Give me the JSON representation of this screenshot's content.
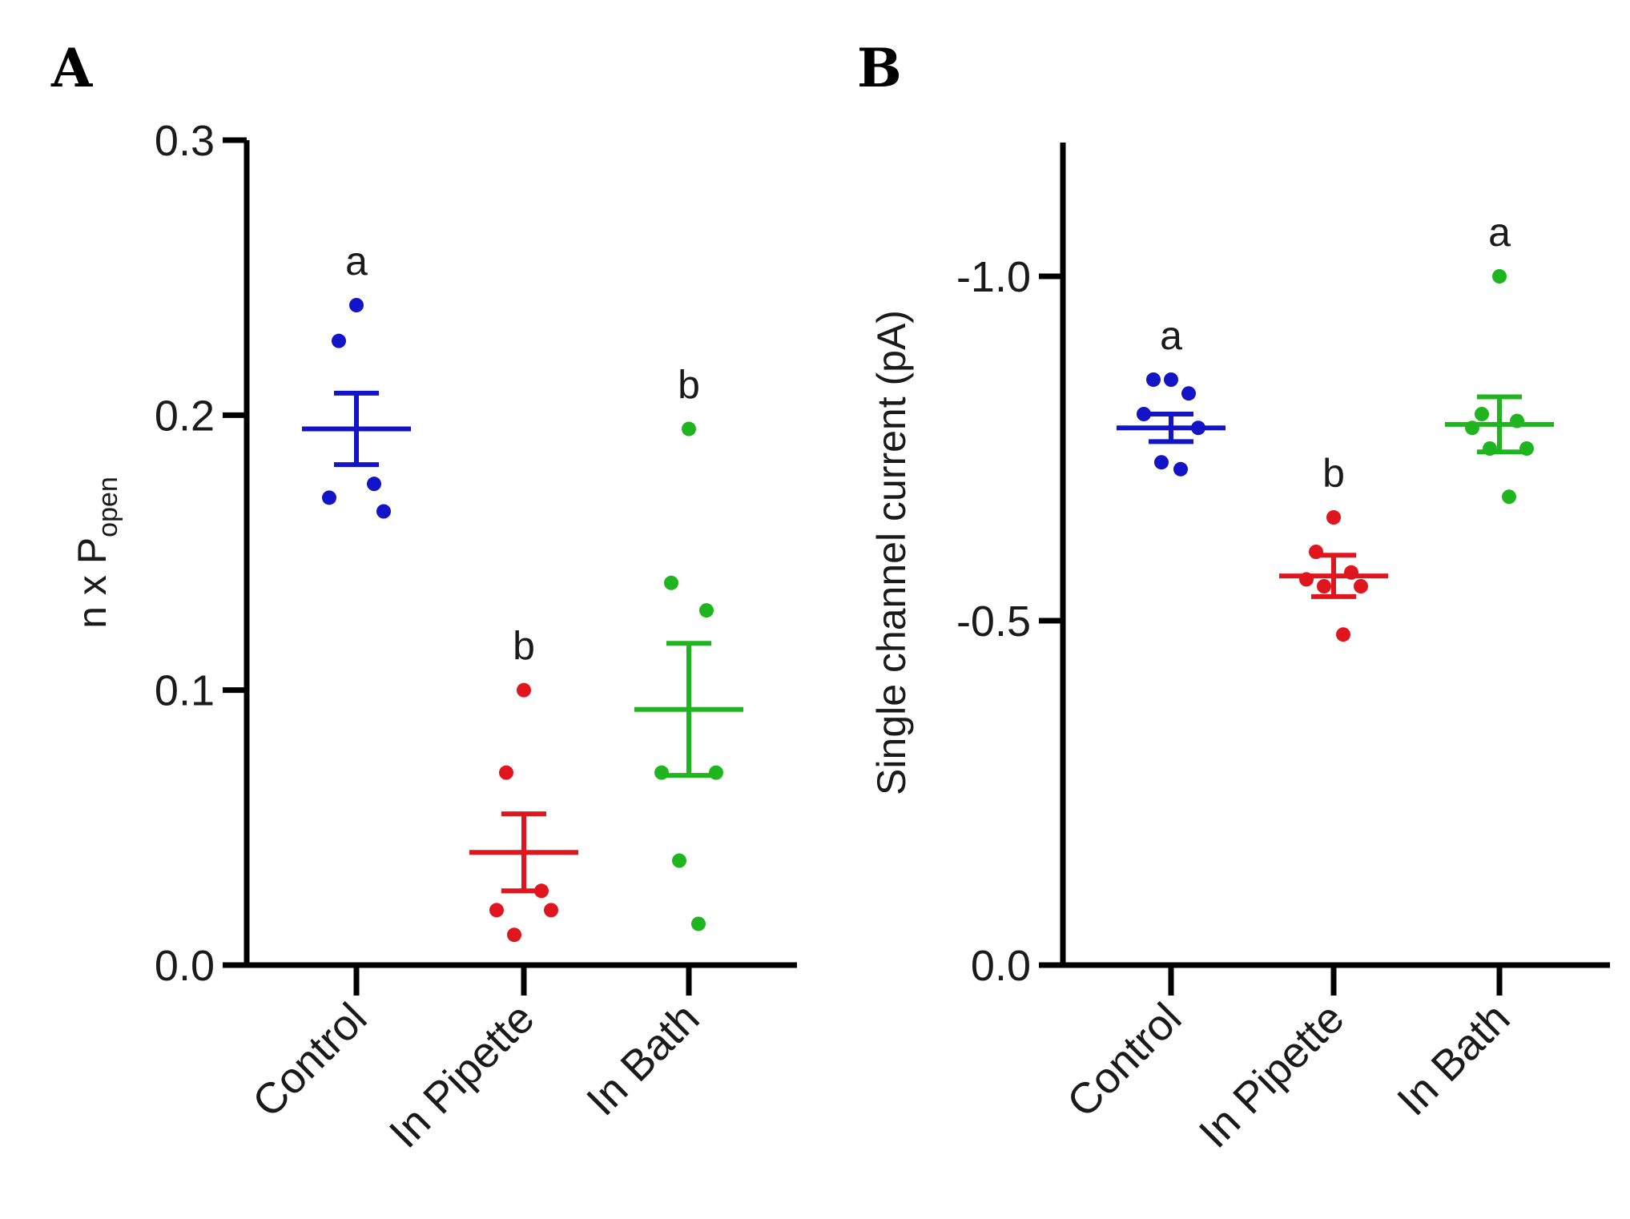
{
  "colors": {
    "control": "#1313c8",
    "pipette": "#e0161e",
    "bath": "#1fb51f",
    "axis": "#000000"
  },
  "chart_data": [
    {
      "panel": "A",
      "type": "scatter",
      "ylabel_main": "n x P",
      "ylabel_sub": "open",
      "ylim": [
        0,
        0.3
      ],
      "yticks": [
        0.0,
        0.1,
        0.2,
        0.3
      ],
      "ytick_labels": [
        "0.0",
        "0.1",
        "0.2",
        "0.3"
      ],
      "categories": [
        "Control",
        "In Pipette",
        "In Bath"
      ],
      "groups": [
        {
          "name": "Control",
          "color": "#1313c8",
          "points": [
            0.24,
            0.227,
            0.175,
            0.17,
            0.165
          ],
          "mean": 0.195,
          "sem": 0.013,
          "sig": "a"
        },
        {
          "name": "In Pipette",
          "color": "#e0161e",
          "points": [
            0.1,
            0.07,
            0.027,
            0.02,
            0.02,
            0.011
          ],
          "mean": 0.041,
          "sem": 0.014,
          "sig": "b"
        },
        {
          "name": "In Bath",
          "color": "#1fb51f",
          "points": [
            0.195,
            0.139,
            0.129,
            0.07,
            0.07,
            0.038,
            0.015
          ],
          "mean": 0.093,
          "sem": 0.024,
          "sig": "b"
        }
      ]
    },
    {
      "panel": "B",
      "type": "scatter",
      "ylabel_main": "Single channel current (pA)",
      "ylim": [
        0,
        -1.2
      ],
      "yticks": [
        0.0,
        -0.5,
        -1.0
      ],
      "ytick_labels": [
        "0.0",
        "-0.5",
        "-1.0"
      ],
      "categories": [
        "Control",
        "In Pipette",
        "In Bath"
      ],
      "groups": [
        {
          "name": "Control",
          "color": "#1313c8",
          "points": [
            -0.85,
            -0.85,
            -0.83,
            -0.8,
            -0.78,
            -0.73,
            -0.72
          ],
          "mean": -0.78,
          "sem": 0.02,
          "sig": "a"
        },
        {
          "name": "In Pipette",
          "color": "#e0161e",
          "points": [
            -0.65,
            -0.6,
            -0.57,
            -0.56,
            -0.55,
            -0.55,
            -0.48
          ],
          "mean": -0.565,
          "sem": 0.03,
          "sig": "b"
        },
        {
          "name": "In Bath",
          "color": "#1fb51f",
          "points": [
            -1.0,
            -0.8,
            -0.79,
            -0.78,
            -0.75,
            -0.75,
            -0.68
          ],
          "mean": -0.785,
          "sem": 0.04,
          "sig": "a"
        }
      ]
    }
  ]
}
